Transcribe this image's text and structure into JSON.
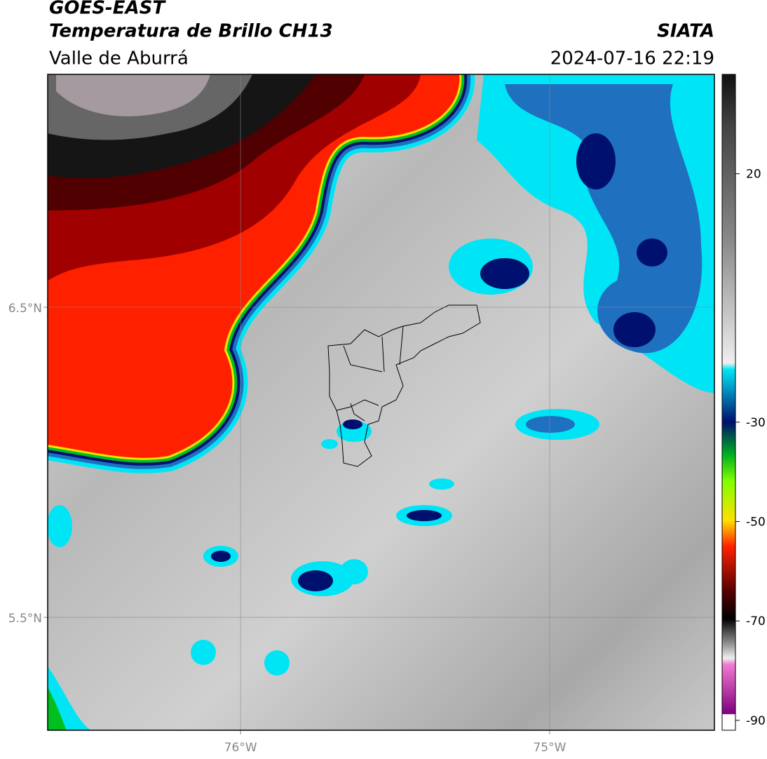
{
  "header": {
    "title": "GOES-EAST",
    "subtitle": "Temperatura de Brillo CH13",
    "region": "Valle de Aburrá",
    "source": "SIATA",
    "datetime": "2024-07-16 22:19"
  },
  "map": {
    "xlim": [
      -76.624,
      -74.467
    ],
    "ylim": [
      5.136,
      7.251
    ],
    "xticks": [
      {
        "value": -76,
        "label": "76°W"
      },
      {
        "value": -75,
        "label": "75°W"
      }
    ],
    "yticks": [
      {
        "value": 6.5,
        "label": "6.5°N"
      },
      {
        "value": 5.5,
        "label": "5.5°N"
      }
    ]
  },
  "colorbar": {
    "lim": [
      -92,
      40
    ],
    "ticks": [
      20,
      -30,
      -50,
      -70,
      -90
    ]
  }
}
